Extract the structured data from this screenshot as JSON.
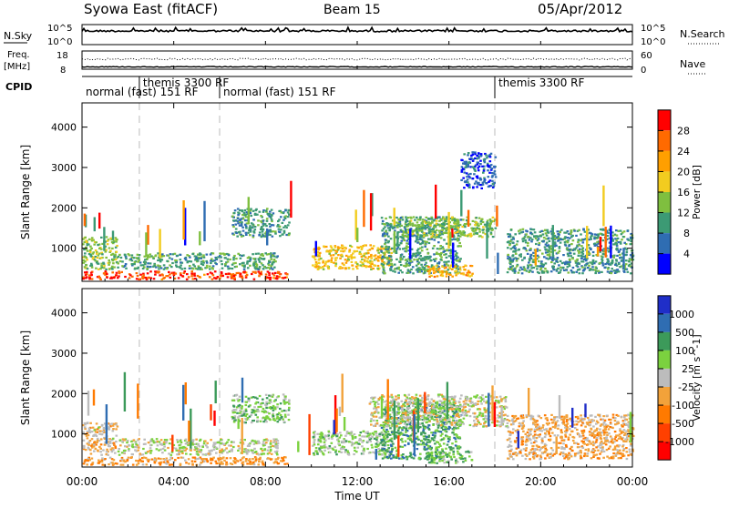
{
  "header": {
    "station": "Syowa East (fitACF)",
    "beam": "Beam 15",
    "date": "05/Apr/2012"
  },
  "top_panels": {
    "nsky_label": "N.Sky",
    "nsky_ticks": [
      "10^5",
      "10^0"
    ],
    "nsearch_label": "N.Search",
    "nsearch_ticks": [
      "10^5",
      "10^0"
    ],
    "freq_label": "Freq.",
    "freq_unit": "[MHz]",
    "freq_ticks": [
      "18",
      "8"
    ],
    "nave_label": "Nave",
    "nave_ticks": [
      "60",
      "0"
    ],
    "cpid_label": "CPID",
    "cpid_segments": [
      {
        "label": "normal (fast) 151 RF",
        "start": 0.0,
        "end": 2.5,
        "row": 2
      },
      {
        "label": "themis 3300 RF",
        "start": 2.5,
        "end": 6.0,
        "row": 1
      },
      {
        "label": "normal (fast) 151 RF",
        "start": 6.0,
        "end": 18.0,
        "row": 2
      },
      {
        "label": "themis 3300 RF",
        "start": 18.0,
        "end": 24.0,
        "row": 1
      }
    ]
  },
  "power_panel": {
    "ylabel": "Slant Range [km]",
    "cbar_label": "Power [dB]",
    "cbar_ticks": [
      "28",
      "24",
      "20",
      "16",
      "12",
      "8",
      "4"
    ],
    "cbar_colors": [
      "#ff0000",
      "#ff6a00",
      "#ff9f00",
      "#f2cc1f",
      "#7fbf3f",
      "#3c9a74",
      "#2f6db2",
      "#0000ff"
    ]
  },
  "velocity_panel": {
    "ylabel": "Slant Range [km]",
    "cbar_label": "Velocity [m s^-1]",
    "cbar_ticks": [
      "1000",
      "500",
      "100",
      "25",
      "-25",
      "-100",
      "-500",
      "-1000"
    ],
    "cbar_colors": [
      "#1f2ec8",
      "#2f6db2",
      "#3c9a5a",
      "#7bd13f",
      "#bcbcbc",
      "#f2a23a",
      "#ff7a00",
      "#ff4000",
      "#ff0000"
    ]
  },
  "axes": {
    "ytick_labels": [
      "1000",
      "2000",
      "3000",
      "4000"
    ],
    "xtick_labels": [
      "00:00",
      "04:00",
      "08:00",
      "12:00",
      "16:00",
      "20:00",
      "00:00"
    ],
    "xlabel": "Time UT"
  },
  "chart_data": {
    "type": "heatmap",
    "title": "Syowa East (fitACF)",
    "subtitle": "Beam 15",
    "date": "05/Apr/2012",
    "xlabel": "Time UT",
    "ylabel": "Slant Range [km]",
    "x_range_hours": [
      0,
      24
    ],
    "ylim": [
      180,
      4600
    ],
    "cpid_boundaries_hours": [
      2.5,
      6.0,
      18.0
    ],
    "panels": [
      {
        "name": "Power",
        "units": "dB",
        "color_range": [
          0,
          30
        ],
        "regions": [
          {
            "t": [
              0.0,
              9.0
            ],
            "r": [
              250,
              450
            ],
            "v": 26
          },
          {
            "t": [
              0.0,
              1.5
            ],
            "r": [
              500,
              1300
            ],
            "v": 13
          },
          {
            "t": [
              1.5,
              8.5
            ],
            "r": [
              500,
              900
            ],
            "v": 10
          },
          {
            "t": [
              6.5,
              9.0
            ],
            "r": [
              1300,
              2000
            ],
            "v": 9
          },
          {
            "t": [
              10.0,
              13.5
            ],
            "r": [
              500,
              1100
            ],
            "v": 18
          },
          {
            "t": [
              13.0,
              16.5
            ],
            "r": [
              400,
              1800
            ],
            "v": 10
          },
          {
            "t": [
              15.0,
              17.0
            ],
            "r": [
              300,
              600
            ],
            "v": 20
          },
          {
            "t": [
              14.0,
              18.0
            ],
            "r": [
              1300,
              1800
            ],
            "v": 13
          },
          {
            "t": [
              18.5,
              24.0
            ],
            "r": [
              400,
              1500
            ],
            "v": 9
          },
          {
            "t": [
              16.5,
              18.0
            ],
            "r": [
              2500,
              3400
            ],
            "v": 5
          }
        ]
      },
      {
        "name": "Velocity",
        "units": "m s^-1",
        "color_range": [
          -1000,
          1000
        ],
        "regions": [
          {
            "t": [
              0.0,
              9.0
            ],
            "r": [
              250,
              450
            ],
            "v": -300
          },
          {
            "t": [
              0.0,
              1.5
            ],
            "r": [
              500,
              1300
            ],
            "v": -120
          },
          {
            "t": [
              1.5,
              8.5
            ],
            "r": [
              500,
              900
            ],
            "v": 60
          },
          {
            "t": [
              6.5,
              9.0
            ],
            "r": [
              1300,
              2000
            ],
            "v": 200
          },
          {
            "t": [
              10.0,
              13.5
            ],
            "r": [
              500,
              1100
            ],
            "v": 150
          },
          {
            "t": [
              13.0,
              16.5
            ],
            "r": [
              400,
              1800
            ],
            "v": 400
          },
          {
            "t": [
              15.0,
              17.0
            ],
            "r": [
              300,
              600
            ],
            "v": 300
          },
          {
            "t": [
              12.5,
              18.5
            ],
            "r": [
              1200,
              2000
            ],
            "v": 0
          },
          {
            "t": [
              18.5,
              24.0
            ],
            "r": [
              400,
              1500
            ],
            "v": -200
          }
        ]
      }
    ]
  }
}
